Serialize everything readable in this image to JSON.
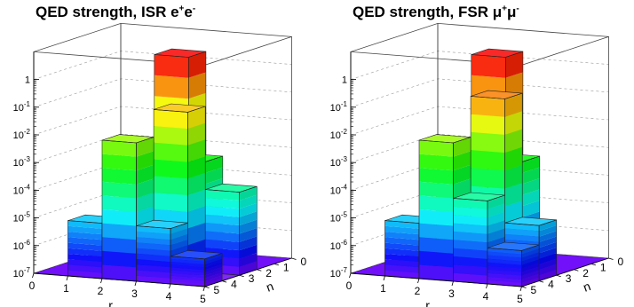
{
  "chart_data": [
    {
      "type": "lego3d",
      "title_main": "QED strength, ISR e",
      "title_sup1": "+",
      "title_mid": "e",
      "title_sup2": "-",
      "xlabel": "r",
      "ylabel": "n",
      "x_ticks": [
        "0",
        "1",
        "2",
        "3",
        "4",
        "5"
      ],
      "y_ticks": [
        "0",
        "1",
        "2",
        "3",
        "4",
        "5"
      ],
      "z_ticks": [
        "1",
        "10^{-1}",
        "10^{-2}",
        "10^{-3}",
        "10^{-4}",
        "10^{-5}",
        "10^{-6}",
        "10^{-7}"
      ],
      "zlog": true,
      "zlim": [
        1e-07,
        10
      ],
      "bars": [
        {
          "r": 1,
          "n": 0,
          "value": 1e-05
        },
        {
          "r": 2,
          "n": 0,
          "value": 0.01
        },
        {
          "r": 3,
          "n": 0,
          "value": 1e-05
        },
        {
          "r": 4,
          "n": 0,
          "value": 1e-06
        },
        {
          "r": 2,
          "n": 1,
          "value": 0.0001
        },
        {
          "r": 3,
          "n": 1,
          "value": 0.1
        },
        {
          "r": 4,
          "n": 1,
          "value": 1e-07
        },
        {
          "r": 2,
          "n": 2,
          "value": 1e-06
        },
        {
          "r": 3,
          "n": 2,
          "value": 0.001
        },
        {
          "r": 4,
          "n": 2,
          "value": 0.0001
        },
        {
          "r": 2,
          "n": 3,
          "value": 3
        }
      ]
    },
    {
      "type": "lego3d",
      "title_main": "QED strength, FSR μ",
      "title_sup1": "+",
      "title_mid": "μ",
      "title_sup2": "-",
      "xlabel": "r",
      "ylabel": "n",
      "x_ticks": [
        "0",
        "1",
        "2",
        "3",
        "4",
        "5"
      ],
      "y_ticks": [
        "0",
        "1",
        "2",
        "3",
        "4",
        "5"
      ],
      "z_ticks": [
        "1",
        "10^{-1}",
        "10^{-2}",
        "10^{-3}",
        "10^{-4}",
        "10^{-5}",
        "10^{-6}",
        "10^{-7}"
      ],
      "zlog": true,
      "zlim": [
        1e-07,
        10
      ],
      "bars": [
        {
          "r": 1,
          "n": 0,
          "value": 1e-05
        },
        {
          "r": 2,
          "n": 0,
          "value": 0.01
        },
        {
          "r": 3,
          "n": 0,
          "value": 0.0001
        },
        {
          "r": 4,
          "n": 0,
          "value": 2e-06
        },
        {
          "r": 2,
          "n": 1,
          "value": 0.0001
        },
        {
          "r": 3,
          "n": 1,
          "value": 0.3
        },
        {
          "r": 4,
          "n": 1,
          "value": 1e-05
        },
        {
          "r": 2,
          "n": 2,
          "value": 1e-06
        },
        {
          "r": 3,
          "n": 2,
          "value": 0.001
        },
        {
          "r": 2,
          "n": 3,
          "value": 3
        }
      ]
    }
  ]
}
